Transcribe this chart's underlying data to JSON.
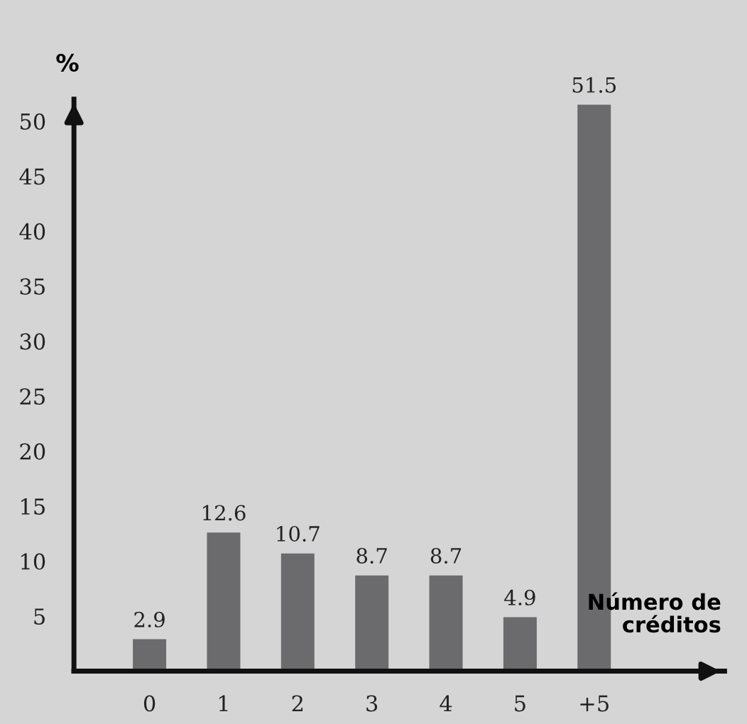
{
  "chart_data": {
    "type": "bar",
    "xlabel": "Número de\ncréditos",
    "ylabel": "%",
    "categories": [
      "0",
      "1",
      "2",
      "3",
      "4",
      "5",
      "+5"
    ],
    "values": [
      2.9,
      12.6,
      10.7,
      8.7,
      8.7,
      4.9,
      51.5
    ],
    "color": "#6b6b6d",
    "ylim": [
      0,
      52
    ],
    "yticks": [
      5,
      10,
      15,
      20,
      25,
      30,
      35,
      40,
      45,
      50
    ],
    "data_labels": true,
    "grid": false,
    "legend": false
  }
}
